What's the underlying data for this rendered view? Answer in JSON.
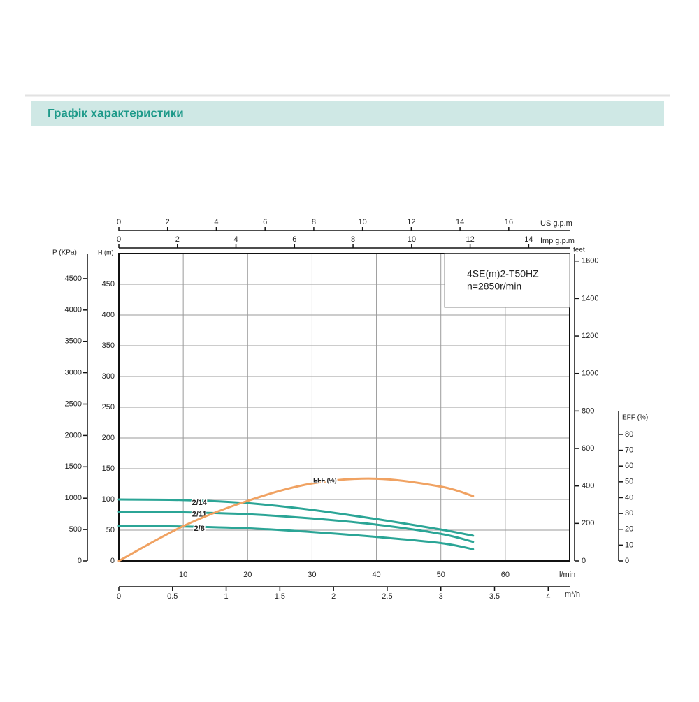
{
  "header": {
    "title": "Графік характеристики"
  },
  "chart_data": {
    "type": "line",
    "x": [
      0,
      10,
      20,
      30,
      40,
      50,
      55
    ],
    "xlim": [
      0,
      70
    ],
    "xticks": [
      10,
      20,
      30,
      40,
      50,
      60
    ],
    "xlabel": "l/min",
    "ylim": [
      0,
      500
    ],
    "yticks": [
      0,
      50,
      100,
      150,
      200,
      250,
      300,
      350,
      400,
      450
    ],
    "ylabel": "H (m)",
    "y3lim": [
      0,
      95
    ],
    "y3ticks": [
      0,
      10,
      20,
      30,
      40,
      50,
      60,
      70,
      80
    ],
    "y3label": "EFF (%)",
    "grid": true,
    "annotations": [
      "4SE(m)2-T50HZ",
      "n=2850r/min"
    ],
    "series": [
      {
        "name": "2/14",
        "color": "#2ba596",
        "values": [
          100,
          99,
          94,
          83,
          68,
          51,
          41
        ]
      },
      {
        "name": "2/11",
        "color": "#2ba596",
        "values": [
          80,
          79,
          76,
          69,
          59,
          44,
          31
        ]
      },
      {
        "name": "2/8",
        "color": "#2ba596",
        "values": [
          57,
          56,
          53,
          47,
          39,
          29,
          19
        ]
      },
      {
        "name": "EFF (%)",
        "color": "#f0a262",
        "axis": "y3",
        "values": [
          0,
          22,
          38,
          49,
          52,
          47,
          41
        ]
      }
    ],
    "extra_axes": [
      {
        "label": "P (KPa)",
        "position": "left",
        "lim": [
          0,
          4900
        ],
        "ticks": [
          0,
          500,
          1000,
          1500,
          2000,
          2500,
          3000,
          3500,
          4000,
          4500
        ]
      },
      {
        "label": "feet",
        "position": "right",
        "lim": [
          0,
          1640
        ],
        "ticks": [
          0,
          200,
          400,
          600,
          800,
          1000,
          1200,
          1400,
          1600
        ]
      },
      {
        "label": "US g.p.m",
        "position": "top-outer",
        "lim": [
          0,
          18.5
        ],
        "ticks": [
          0,
          2,
          4,
          6,
          8,
          10,
          12,
          14,
          16
        ]
      },
      {
        "label": "Imp g.p.m",
        "position": "top",
        "lim": [
          0,
          15.4
        ],
        "ticks": [
          0,
          2,
          4,
          6,
          8,
          10,
          12,
          14
        ]
      },
      {
        "label": "m³/h",
        "position": "bottom",
        "lim": [
          0,
          4.2
        ],
        "ticks": [
          0,
          0.5,
          1,
          1.5,
          2,
          2.5,
          3,
          3.5,
          4
        ]
      }
    ]
  }
}
